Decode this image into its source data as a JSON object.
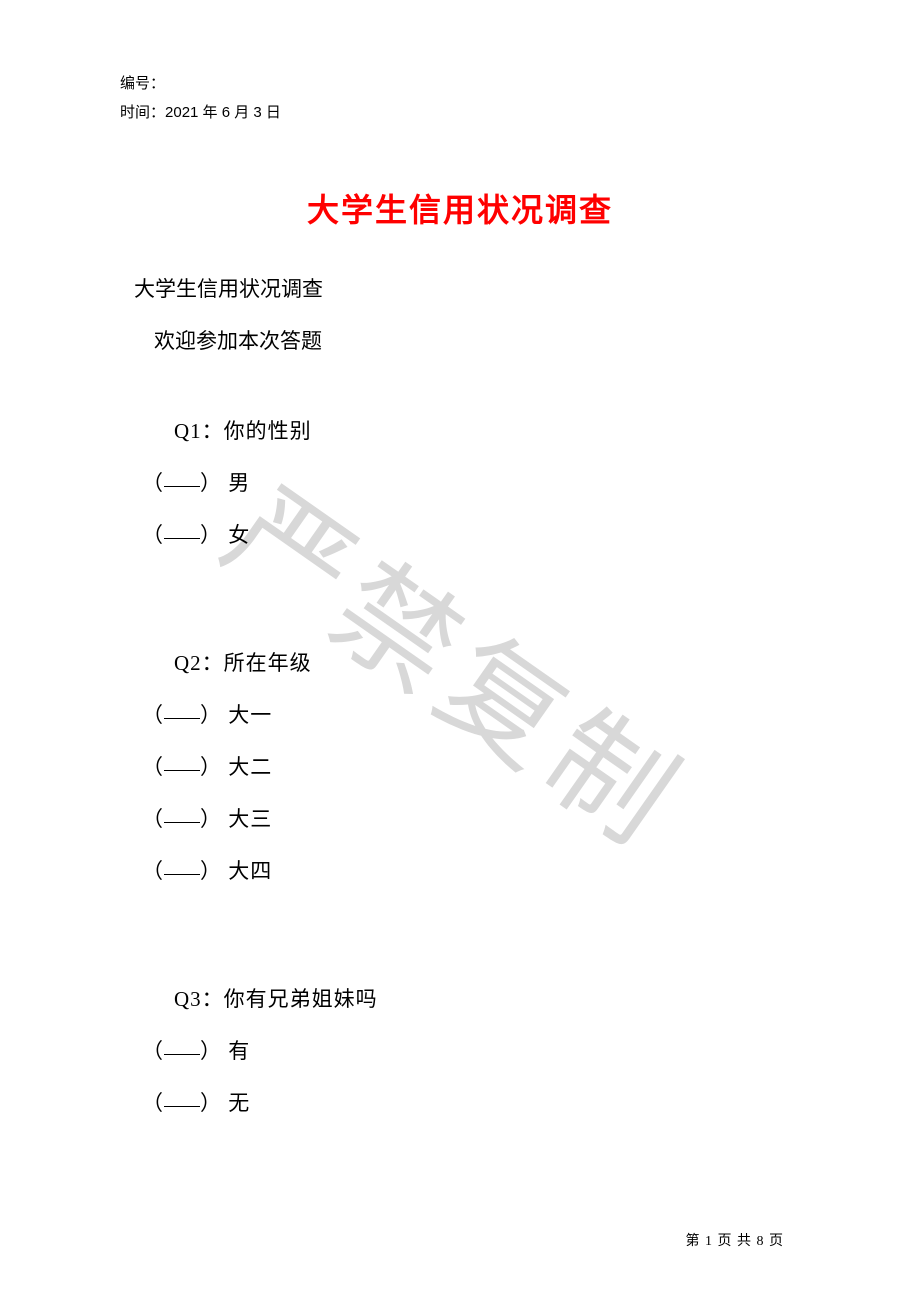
{
  "header": {
    "serial_label": "编号：",
    "date_label": "时间：",
    "date_value": "2021 年 6 月 3 日"
  },
  "watermark": "严禁复制",
  "title": "大学生信用状况调查",
  "subtitle": "大学生信用状况调查",
  "welcome": "欢迎参加本次答题",
  "questions": [
    {
      "label": "Q1：你的性别",
      "options": [
        "男",
        "女"
      ]
    },
    {
      "label": "Q2：所在年级",
      "options": [
        "大一",
        "大二",
        "大三",
        "大四"
      ]
    },
    {
      "label": "Q3：你有兄弟姐妹吗",
      "options": [
        "有",
        "无"
      ]
    }
  ],
  "footer": {
    "prefix": "第 ",
    "page_current": "1",
    "middle": " 页 共 ",
    "page_total": "8",
    "suffix": " 页"
  },
  "colors": {
    "title_color": "#ff0000",
    "text_color": "#000000",
    "watermark_color": "#d8d8d8",
    "background": "#ffffff"
  }
}
